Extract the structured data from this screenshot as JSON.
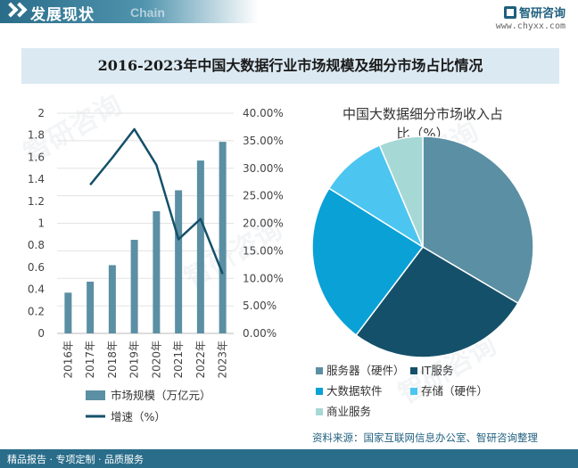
{
  "header": {
    "title": "发展现状",
    "subtitle": "Chain",
    "brand_name": "智研咨询",
    "brand_url": "www.chyxx.com"
  },
  "main_title": "2016-2023年中国大数据行业市场规模及细分市场占比情况",
  "footer": {
    "left": "精品报告 · 专项定制 · 品质服务",
    "source": "资料来源：国家互联网信息办公室、智研咨询整理"
  },
  "colors": {
    "bar": "#5b8fa3",
    "line": "#15506a",
    "band": "#dbe9f2",
    "footer": "#2a6d8a"
  },
  "chart_data": [
    {
      "type": "bar",
      "title": "",
      "categories": [
        "2016年",
        "2017年",
        "2018年",
        "2019年",
        "2020年",
        "2021年",
        "2022年",
        "2023年"
      ],
      "series": [
        {
          "name": "市场规模（万亿元）",
          "type": "bar",
          "axis": "left",
          "values": [
            0.37,
            0.47,
            0.62,
            0.85,
            1.11,
            1.3,
            1.57,
            1.74
          ]
        },
        {
          "name": "增速（%）",
          "type": "line",
          "axis": "right",
          "values": [
            null,
            27.0,
            31.9,
            37.1,
            30.6,
            17.1,
            20.8,
            10.8
          ]
        }
      ],
      "y_left": {
        "lim": [
          0,
          2
        ],
        "ticks": [
          "0",
          "0.2",
          "0.4",
          "0.6",
          "0.8",
          "1",
          "1.2",
          "1.4",
          "1.6",
          "1.8",
          "2"
        ]
      },
      "y_right": {
        "lim": [
          0,
          40
        ],
        "ticks": [
          "0.00%",
          "5.00%",
          "10.00%",
          "15.00%",
          "20.00%",
          "25.00%",
          "30.00%",
          "35.00%",
          "40.00%"
        ]
      },
      "grid": true,
      "legend": "bottom"
    },
    {
      "type": "pie",
      "title": "中国大数据细分市场收入占比（%）",
      "title_lines": [
        "中国大数据细分市场收入占",
        "比（%）"
      ],
      "slices": [
        {
          "label": "服务器（硬件）",
          "value": 33.5,
          "color": "#5b8fa3"
        },
        {
          "label": "IT服务",
          "value": 26.8,
          "color": "#15506a"
        },
        {
          "label": "大数据软件",
          "value": 23.6,
          "color": "#0aa1d6"
        },
        {
          "label": "存储（硬件）",
          "value": 9.7,
          "color": "#4cc6f0"
        },
        {
          "label": "商业服务",
          "value": 6.4,
          "color": "#a6d8d6"
        }
      ],
      "legend": "bottom"
    }
  ]
}
